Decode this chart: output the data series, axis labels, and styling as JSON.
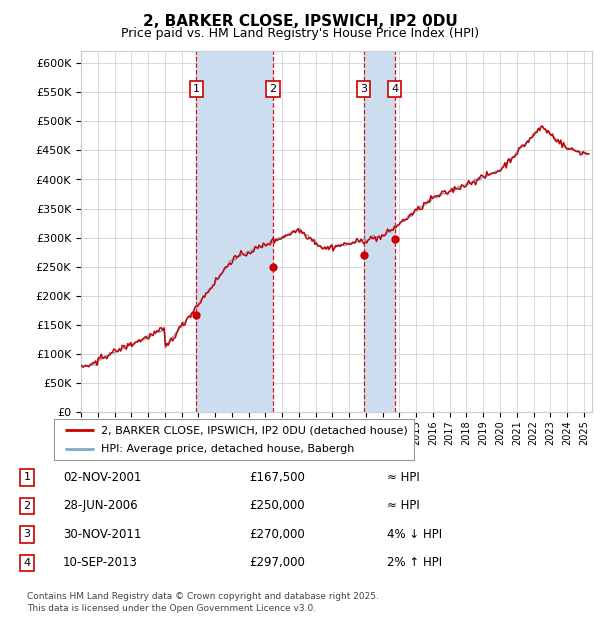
{
  "title": "2, BARKER CLOSE, IPSWICH, IP2 0DU",
  "subtitle": "Price paid vs. HM Land Registry's House Price Index (HPI)",
  "legend_line1": "2, BARKER CLOSE, IPSWICH, IP2 0DU (detached house)",
  "legend_line2": "HPI: Average price, detached house, Babergh",
  "footer_line1": "Contains HM Land Registry data © Crown copyright and database right 2025.",
  "footer_line2": "This data is licensed under the Open Government Licence v3.0.",
  "red_color": "#cc0000",
  "blue_color": "#7aabca",
  "background_color": "#ffffff",
  "grid_color": "#cccccc",
  "ylim": [
    0,
    620000
  ],
  "yticks": [
    0,
    50000,
    100000,
    150000,
    200000,
    250000,
    300000,
    350000,
    400000,
    450000,
    500000,
    550000,
    600000
  ],
  "xstart_year": 1995,
  "xend_year": 2025,
  "sales": [
    {
      "num": 1,
      "date": "2001-11-02",
      "price": 167500,
      "label": "02-NOV-2001",
      "price_str": "£167,500",
      "rel": "≈ HPI"
    },
    {
      "num": 2,
      "date": "2006-06-28",
      "price": 250000,
      "label": "28-JUN-2006",
      "price_str": "£250,000",
      "rel": "≈ HPI"
    },
    {
      "num": 3,
      "date": "2011-11-30",
      "price": 270000,
      "label": "30-NOV-2011",
      "price_str": "£270,000",
      "rel": "4% ↓ HPI"
    },
    {
      "num": 4,
      "date": "2013-09-10",
      "price": 297000,
      "label": "10-SEP-2013",
      "price_str": "£297,000",
      "rel": "2% ↑ HPI"
    }
  ],
  "annotation_box_color": "#cc0000",
  "annotation_bg": "#ffffff",
  "vshade_color": "#ccddf0"
}
